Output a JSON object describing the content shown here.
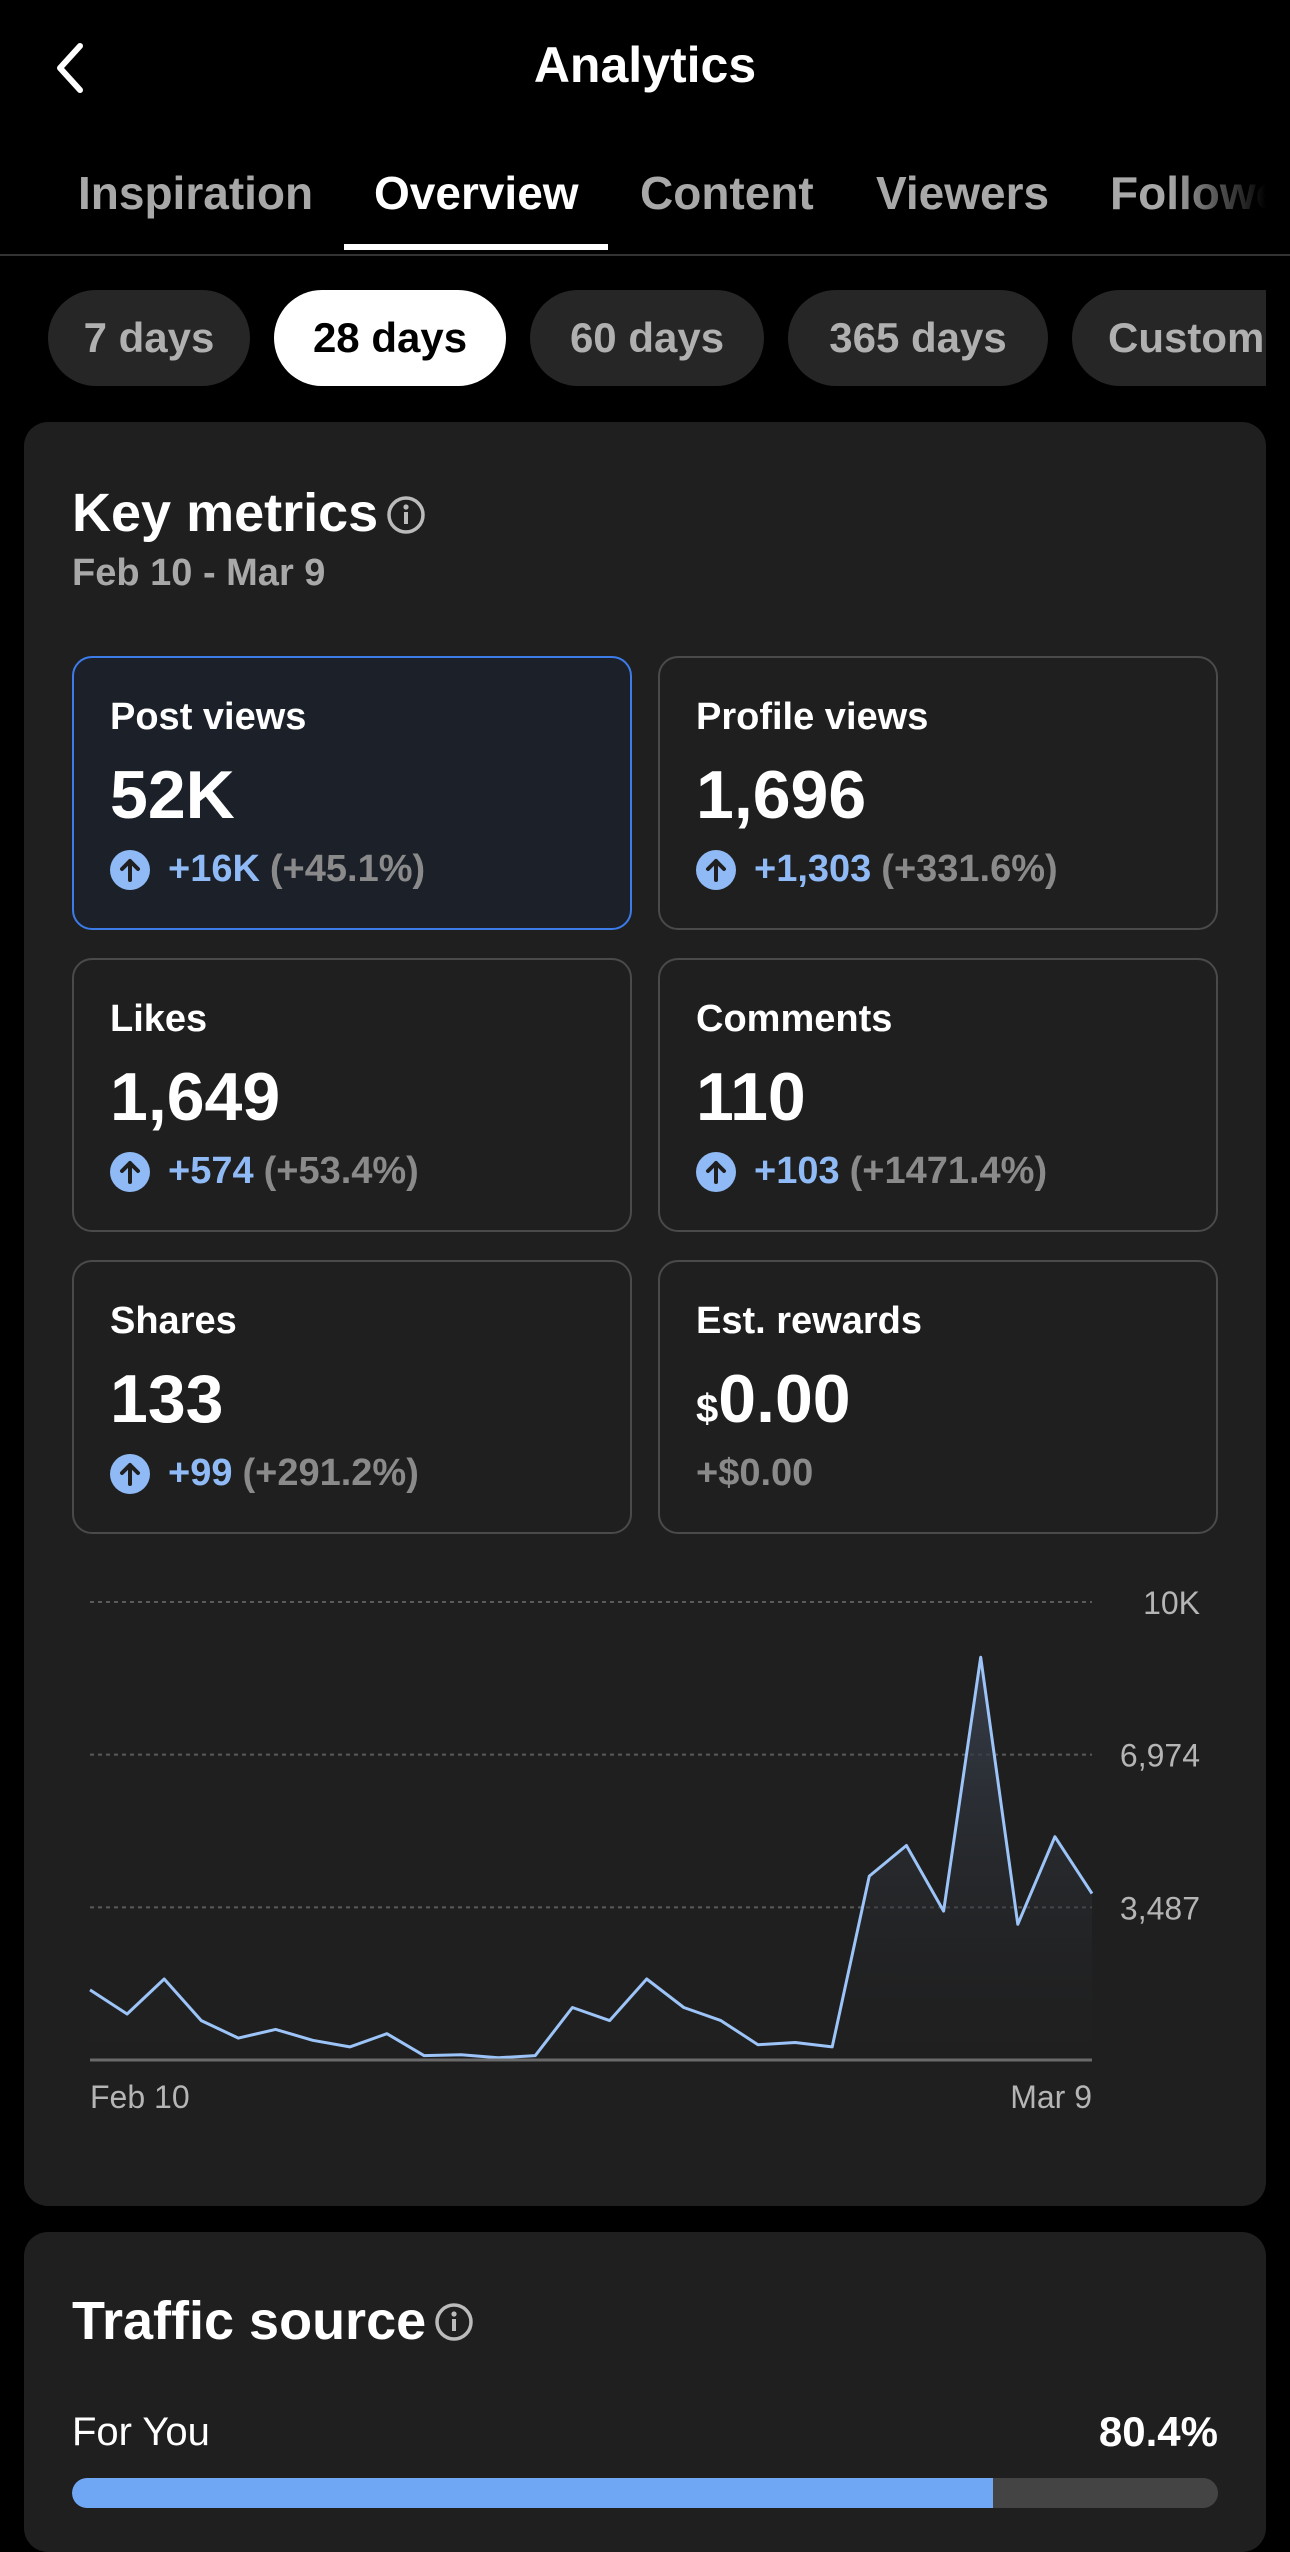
{
  "header": {
    "title": "Analytics"
  },
  "tabs": [
    {
      "label": "Inspiration"
    },
    {
      "label": "Overview"
    },
    {
      "label": "Content"
    },
    {
      "label": "Viewers"
    },
    {
      "label": "Followers"
    }
  ],
  "active_tab": "Overview",
  "ranges": [
    {
      "label": "7 days"
    },
    {
      "label": "28 days"
    },
    {
      "label": "60 days"
    },
    {
      "label": "365 days"
    },
    {
      "label": "Custom"
    }
  ],
  "active_range": "28 days",
  "key_metrics": {
    "title": "Key metrics",
    "date_range": "Feb 10 - Mar 9",
    "cards": [
      {
        "label": "Post views",
        "value": "52K",
        "change": "+16K",
        "pct": "(+45.1%)"
      },
      {
        "label": "Profile views",
        "value": "1,696",
        "change": "+1,303",
        "pct": "(+331.6%)"
      },
      {
        "label": "Likes",
        "value": "1,649",
        "change": "+574",
        "pct": "(+53.4%)"
      },
      {
        "label": "Comments",
        "value": "110",
        "change": "+103",
        "pct": "(+1471.4%)"
      },
      {
        "label": "Shares",
        "value": "133",
        "change": "+99",
        "pct": "(+291.2%)"
      },
      {
        "label": "Est. rewards",
        "currency": "$",
        "value": "0.00",
        "change": "+$0.00"
      }
    ],
    "selected_card": "Post views"
  },
  "chart_data": {
    "type": "area",
    "series": [
      {
        "values": [
          1600,
          1050,
          1850,
          900,
          500,
          700,
          450,
          300,
          600,
          100,
          120,
          50,
          100,
          1200,
          900,
          1850,
          1200,
          900,
          350,
          400,
          300,
          4200,
          4900,
          3400,
          9200,
          3100,
          5100,
          3800
        ]
      }
    ],
    "x": [
      "Feb 10",
      "Feb 11",
      "Feb 12",
      "Feb 13",
      "Feb 14",
      "Feb 15",
      "Feb 16",
      "Feb 17",
      "Feb 18",
      "Feb 19",
      "Feb 20",
      "Feb 21",
      "Feb 22",
      "Feb 23",
      "Feb 24",
      "Feb 25",
      "Feb 26",
      "Feb 27",
      "Feb 28",
      "Mar 1",
      "Mar 2",
      "Mar 3",
      "Mar 4",
      "Mar 5",
      "Mar 6",
      "Mar 7",
      "Mar 8",
      "Mar 9"
    ],
    "x_tick_labels": [
      "Feb 10",
      "Mar 9"
    ],
    "y_tick_labels": [
      "10K",
      "6,974",
      "3,487"
    ],
    "y_ticks": [
      10461,
      6974,
      3487
    ],
    "ylim": [
      0,
      10461
    ],
    "grid": true,
    "colors": {
      "line": "#9cc4f8",
      "grid": "#5a5a5a"
    }
  },
  "traffic_source": {
    "title": "Traffic source",
    "rows": [
      {
        "label": "For You",
        "value": "80.4%",
        "fraction": 0.804
      }
    ]
  },
  "colors": {
    "accent": "#70a7f5",
    "background": "#000000",
    "card": "#1f1f1f"
  }
}
